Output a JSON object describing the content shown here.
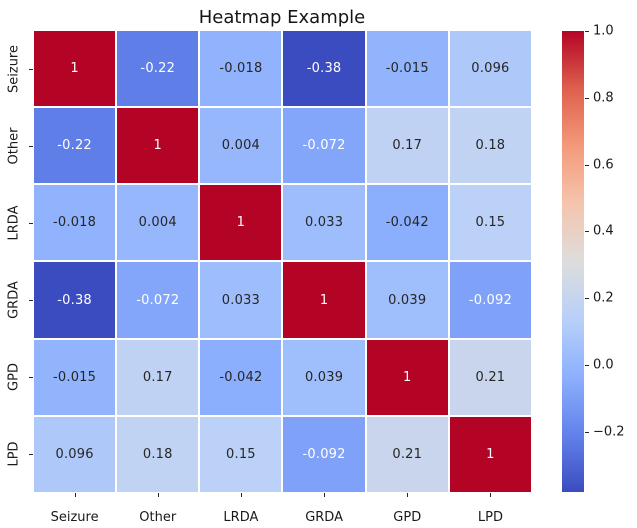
{
  "chart_data": {
    "type": "heatmap",
    "title": "Heatmap Example",
    "categories": [
      "Seizure",
      "Other",
      "LRDA",
      "GRDA",
      "GPD",
      "LPD"
    ],
    "matrix": [
      [
        1,
        -0.22,
        -0.018,
        -0.38,
        -0.015,
        0.096
      ],
      [
        -0.22,
        1,
        0.004,
        -0.072,
        0.17,
        0.18
      ],
      [
        -0.018,
        0.004,
        1,
        0.033,
        -0.042,
        0.15
      ],
      [
        -0.38,
        -0.072,
        0.033,
        1,
        0.039,
        -0.092
      ],
      [
        -0.015,
        0.17,
        -0.042,
        0.039,
        1,
        0.21
      ],
      [
        0.096,
        0.18,
        0.15,
        -0.092,
        0.21,
        1
      ]
    ],
    "cell_labels": [
      [
        "1",
        "-0.22",
        "-0.018",
        "-0.38",
        "-0.015",
        "0.096"
      ],
      [
        "-0.22",
        "1",
        "0.004",
        "-0.072",
        "0.17",
        "0.18"
      ],
      [
        "-0.018",
        "0.004",
        "1",
        "0.033",
        "-0.042",
        "0.15"
      ],
      [
        "-0.38",
        "-0.072",
        "0.033",
        "1",
        "0.039",
        "-0.092"
      ],
      [
        "-0.015",
        "0.17",
        "-0.042",
        "0.039",
        "1",
        "0.21"
      ],
      [
        "0.096",
        "0.18",
        "0.15",
        "-0.092",
        "0.21",
        "1"
      ]
    ],
    "vmin": -0.38,
    "vmax": 1.0,
    "colormap": {
      "name": "coolwarm",
      "stops": [
        [
          0.0,
          "#3b4cc0"
        ],
        [
          0.125,
          "#6282ea"
        ],
        [
          0.25,
          "#8db0fe"
        ],
        [
          0.375,
          "#b8d0f9"
        ],
        [
          0.5,
          "#dddddd"
        ],
        [
          0.625,
          "#f5c4ad"
        ],
        [
          0.75,
          "#f49a7b"
        ],
        [
          0.875,
          "#de604d"
        ],
        [
          1.0,
          "#b40426"
        ]
      ]
    },
    "colorbar": {
      "position": "right",
      "ticks": [
        {
          "label": "1.0",
          "value": 1.0
        },
        {
          "label": "0.8",
          "value": 0.8
        },
        {
          "label": "0.6",
          "value": 0.6
        },
        {
          "label": "0.4",
          "value": 0.4
        },
        {
          "label": "0.2",
          "value": 0.2
        },
        {
          "label": "0.0",
          "value": 0.0
        },
        {
          "label": "−0.2",
          "value": -0.2
        }
      ]
    },
    "annotation_colors": {
      "light": "#ffffff",
      "dark": "#262626"
    },
    "grid_line_color": "#ffffff",
    "background": "#ffffff",
    "legend": "none",
    "grid": "off"
  }
}
